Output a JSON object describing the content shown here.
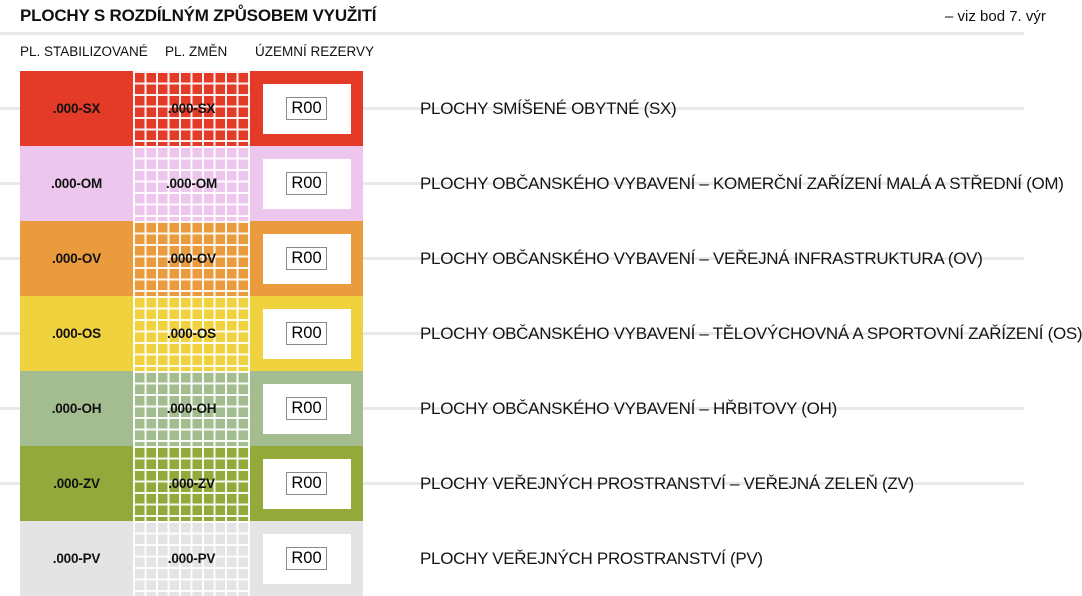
{
  "title": "PLOCHY S ROZDÍLNÝM ZPŮSOBEM VYUŽITÍ",
  "note_top_right": "– viz bod 7. výr",
  "columns": [
    "PL. STABILIZOVANÉ",
    "PL. ZMĚN",
    "ÚZEMNÍ REZERVY"
  ],
  "reserve_label": "R00",
  "rows": [
    {
      "code": ".000-SX",
      "color": "#e33b28",
      "description": "PLOCHY SMÍŠENÉ OBYTNÉ (SX)"
    },
    {
      "code": ".000-OM",
      "color": "#ecc6ec",
      "description": "PLOCHY OBČANSKÉHO VYBAVENÍ – KOMERČNÍ ZAŘÍZENÍ MALÁ A STŘEDNÍ (OM)"
    },
    {
      "code": ".000-OV",
      "color": "#e99b3d",
      "description": "PLOCHY OBČANSKÉHO VYBAVENÍ – VEŘEJNÁ INFRASTRUKTURA (OV)"
    },
    {
      "code": ".000-OS",
      "color": "#f0d23f",
      "description": "PLOCHY OBČANSKÉHO VYBAVENÍ – TĚLOVÝCHOVNÁ A SPORTOVNÍ ZAŘÍZENÍ (OS)"
    },
    {
      "code": ".000-OH",
      "color": "#a4bd90",
      "description": "PLOCHY OBČANSKÉHO VYBAVENÍ – HŘBITOVY (OH)"
    },
    {
      "code": ".000-ZV",
      "color": "#93a93c",
      "description": "PLOCHY VEŘEJNÝCH PROSTRANSTVÍ – VEŘEJNÁ ZELEŇ (ZV)"
    },
    {
      "code": ".000-PV",
      "color": "#e4e4e4",
      "description": "PLOCHY VEŘEJNÝCH PROSTRANSTVÍ (PV)"
    }
  ]
}
